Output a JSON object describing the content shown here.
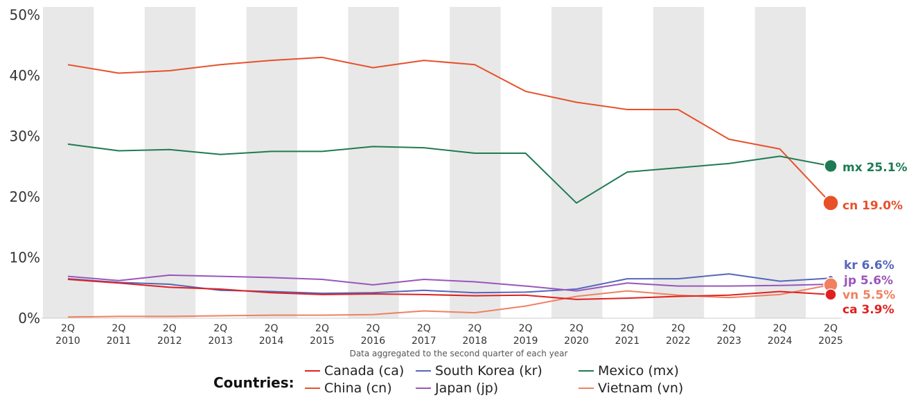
{
  "chart_data": {
    "type": "line",
    "title": "",
    "caption": "Data aggregated to the second quarter of each year",
    "xlabel": "",
    "ylabel": "",
    "ylim": [
      0,
      50
    ],
    "y_ticks": [
      "0%",
      "10%",
      "20%",
      "30%",
      "40%",
      "50%"
    ],
    "y_tick_values": [
      0,
      10,
      20,
      30,
      40,
      50
    ],
    "categories": [
      "2Q 2010",
      "2Q 2011",
      "2Q 2012",
      "2Q 2013",
      "2Q 2014",
      "2Q 2015",
      "2Q 2016",
      "2Q 2017",
      "2Q 2018",
      "2Q 2019",
      "2Q 2020",
      "2Q 2021",
      "2Q 2022",
      "2Q 2023",
      "2Q 2024",
      "2Q 2025"
    ],
    "x_tick_top": [
      "2Q",
      "2Q",
      "2Q",
      "2Q",
      "2Q",
      "2Q",
      "2Q",
      "2Q",
      "2Q",
      "2Q",
      "2Q",
      "2Q",
      "2Q",
      "2Q",
      "2Q",
      "2Q"
    ],
    "x_tick_bottom": [
      "2010",
      "2011",
      "2012",
      "2013",
      "2014",
      "2015",
      "2016",
      "2017",
      "2018",
      "2019",
      "2020",
      "2021",
      "2022",
      "2023",
      "2024",
      "2025"
    ],
    "grid": false,
    "shaded_bands": "alternating years",
    "legend_title": "Countries:",
    "legend_position": "bottom",
    "series": [
      {
        "key": "cn",
        "name": "China (cn)",
        "color": "#e8502a",
        "end_label": "cn 19.0%",
        "values": [
          41.8,
          40.4,
          40.8,
          41.8,
          42.5,
          43.0,
          41.3,
          42.5,
          41.8,
          37.4,
          35.6,
          34.4,
          34.4,
          29.5,
          27.9,
          19.0
        ]
      },
      {
        "key": "mx",
        "name": "Mexico (mx)",
        "color": "#1e7a52",
        "end_label": "mx 25.1%",
        "values": [
          28.7,
          27.6,
          27.8,
          27.0,
          27.5,
          27.5,
          28.3,
          28.1,
          27.2,
          27.2,
          19.0,
          24.1,
          24.8,
          25.5,
          26.7,
          25.1
        ]
      },
      {
        "key": "kr",
        "name": "South Korea    (kr)",
        "color": "#5566bb",
        "end_label": "kr 6.6%",
        "values": [
          6.5,
          5.9,
          5.6,
          4.6,
          4.4,
          4.1,
          4.2,
          4.6,
          4.2,
          4.3,
          4.8,
          6.5,
          6.5,
          7.3,
          6.1,
          6.6
        ]
      },
      {
        "key": "jp",
        "name": "Japan  (jp)",
        "color": "#9955bb",
        "end_label": "jp 5.6%",
        "values": [
          6.9,
          6.2,
          7.1,
          6.9,
          6.7,
          6.4,
          5.5,
          6.4,
          6.0,
          5.3,
          4.5,
          5.8,
          5.3,
          5.3,
          5.4,
          5.6
        ]
      },
      {
        "key": "vn",
        "name": "Vietnam (vn)",
        "color": "#f08060",
        "end_label": "vn 5.5%",
        "values": [
          0.2,
          0.3,
          0.3,
          0.4,
          0.5,
          0.5,
          0.6,
          1.2,
          0.9,
          2.0,
          3.6,
          4.5,
          3.8,
          3.4,
          3.9,
          5.5
        ]
      },
      {
        "key": "ca",
        "name": "Canada (ca)",
        "color": "#e02020",
        "end_label": "ca 3.9%",
        "values": [
          6.4,
          5.8,
          5.1,
          4.8,
          4.2,
          3.9,
          4.0,
          3.9,
          3.7,
          3.8,
          3.1,
          3.3,
          3.6,
          3.8,
          4.4,
          3.9
        ]
      }
    ]
  }
}
